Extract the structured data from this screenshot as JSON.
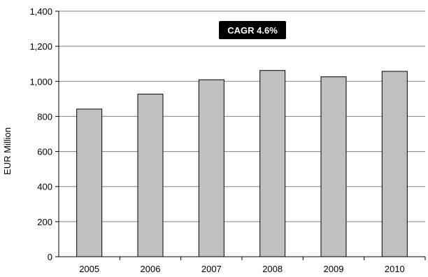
{
  "chart_data": {
    "type": "bar",
    "title": "",
    "categories": [
      "2005",
      "2006",
      "2007",
      "2008",
      "2009",
      "2010"
    ],
    "values": [
      842,
      927,
      1009,
      1062,
      1026,
      1057
    ],
    "xlabel": "",
    "ylabel": "EUR Million",
    "ylim": [
      0,
      1400
    ],
    "yticks": [
      0,
      200,
      400,
      600,
      800,
      1000,
      1200,
      1400
    ],
    "ytick_labels": [
      "0",
      "200",
      "400",
      "600",
      "800",
      "1,000",
      "1,200",
      "1,400"
    ],
    "annotation": "CAGR 4.6%",
    "grid": true,
    "legend": "none",
    "colors": {
      "bar_fill": "#c0c0c0",
      "bar_stroke": "#000000",
      "grid": "#808080",
      "annotation_bg": "#000000"
    }
  }
}
